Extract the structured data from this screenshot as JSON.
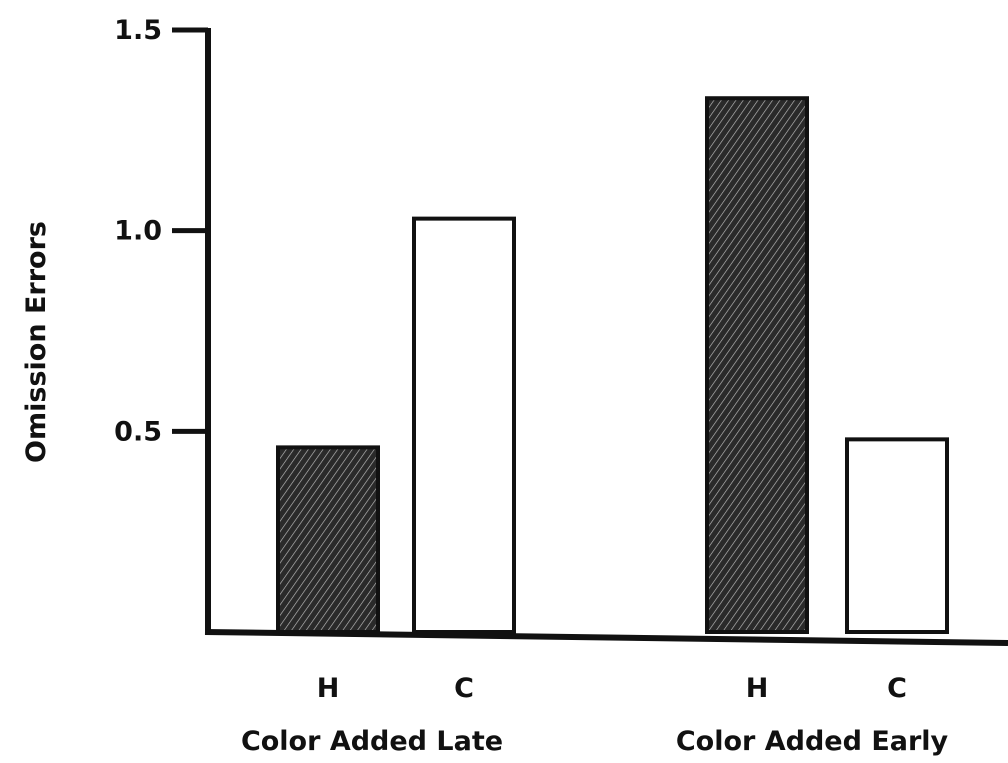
{
  "chart_data": {
    "type": "bar",
    "title": "",
    "ylabel": "Omission Errors",
    "xlabel": "",
    "ylim": [
      0,
      1.5
    ],
    "yticks": [
      "0.5",
      "1.0",
      "1.5"
    ],
    "ytick_values": [
      0.5,
      1.0,
      1.5
    ],
    "grid": false,
    "groups": [
      {
        "label": "Color Added Late",
        "bars": [
          {
            "label": "H",
            "value": 0.46,
            "fill": "hatched"
          },
          {
            "label": "C",
            "value": 1.03,
            "fill": "white"
          }
        ]
      },
      {
        "label": "Color Added Early",
        "bars": [
          {
            "label": "H",
            "value": 1.33,
            "fill": "hatched"
          },
          {
            "label": "C",
            "value": 0.48,
            "fill": "white"
          }
        ]
      }
    ],
    "colors": {
      "axis": "#111111",
      "hatched_bg": "#2a2a2a",
      "hatched_line": "#bdbdbd",
      "white_bar": "#ffffff"
    }
  }
}
